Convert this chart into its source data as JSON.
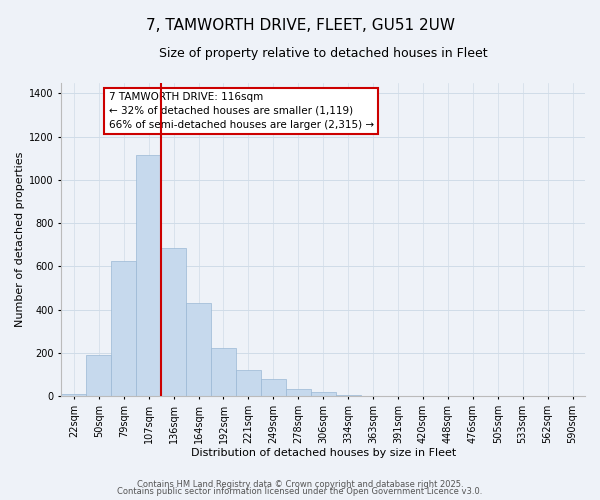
{
  "title": "7, TAMWORTH DRIVE, FLEET, GU51 2UW",
  "subtitle": "Size of property relative to detached houses in Fleet",
  "xlabel": "Distribution of detached houses by size in Fleet",
  "ylabel": "Number of detached properties",
  "bar_labels": [
    "22sqm",
    "50sqm",
    "79sqm",
    "107sqm",
    "136sqm",
    "164sqm",
    "192sqm",
    "221sqm",
    "249sqm",
    "278sqm",
    "306sqm",
    "334sqm",
    "363sqm",
    "391sqm",
    "420sqm",
    "448sqm",
    "476sqm",
    "505sqm",
    "533sqm",
    "562sqm",
    "590sqm"
  ],
  "bar_values": [
    13,
    193,
    627,
    1113,
    686,
    430,
    222,
    121,
    82,
    32,
    22,
    4,
    1,
    0,
    0,
    0,
    0,
    0,
    0,
    0,
    0
  ],
  "bar_color": "#c6d9ed",
  "bar_edge_color": "#9ab8d4",
  "grid_color": "#d0dce8",
  "background_color": "#eef2f8",
  "vline_x_index": 3,
  "vline_color": "#cc0000",
  "annotation_line1": "7 TAMWORTH DRIVE: 116sqm",
  "annotation_line2": "← 32% of detached houses are smaller (1,119)",
  "annotation_line3": "66% of semi-detached houses are larger (2,315) →",
  "ylim": [
    0,
    1450
  ],
  "yticks": [
    0,
    200,
    400,
    600,
    800,
    1000,
    1200,
    1400
  ],
  "footer_line1": "Contains HM Land Registry data © Crown copyright and database right 2025.",
  "footer_line2": "Contains public sector information licensed under the Open Government Licence v3.0.",
  "title_fontsize": 11,
  "subtitle_fontsize": 9,
  "axis_label_fontsize": 8,
  "tick_fontsize": 7,
  "annotation_fontsize": 7.5,
  "footer_fontsize": 6
}
